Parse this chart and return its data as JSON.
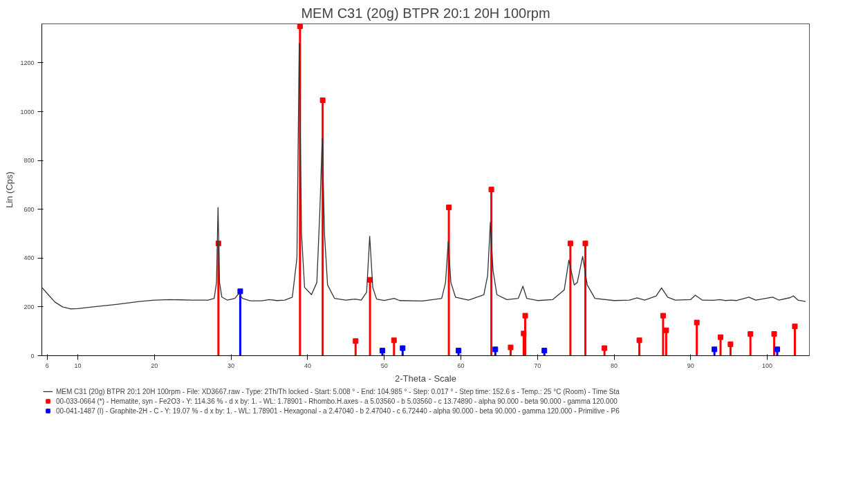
{
  "chart_data": {
    "type": "line",
    "title": "MEM C31 (20g) BTPR 20:1 20H 100rpm",
    "xlabel": "2-Theta - Scale",
    "ylabel": "Lin (Cps)",
    "xlim": [
      5.3,
      105.5
    ],
    "ylim": [
      0,
      1360
    ],
    "xticks": [
      6,
      10,
      20,
      30,
      40,
      50,
      60,
      70,
      80,
      90,
      100
    ],
    "yticks": [
      0,
      200,
      400,
      600,
      800,
      1000,
      1200
    ],
    "grid": false,
    "legend": "bottom",
    "series": [
      {
        "name": "MEM C31 (20g) BTPR 20:1 20H 100rpm - File: XD3667.raw - Type: 2Th/Th locked - Start: 5.008 ° - End: 104.985 ° - Step: 0.017 ° - Step time: 152.6 s - Temp.: 25 °C (Room) - Time Sta",
        "color": "#333333",
        "marker": "none",
        "x": [
          5.3,
          6,
          7,
          8,
          9,
          10,
          12,
          15,
          18,
          20,
          22,
          25,
          27,
          27.8,
          28.1,
          28.3,
          28.5,
          28.8,
          29.5,
          30.5,
          31.0,
          31.5,
          32.5,
          34,
          35,
          36,
          37,
          38,
          38.6,
          38.9,
          39.2,
          39.6,
          40.5,
          41.2,
          41.6,
          41.9,
          42.2,
          42.6,
          43.5,
          45,
          46.2,
          47,
          47.7,
          48.1,
          48.5,
          49,
          50,
          51.3,
          52,
          55,
          57.5,
          58,
          58.35,
          58.7,
          59.3,
          61,
          63,
          63.5,
          63.85,
          64.2,
          64.7,
          66,
          67.5,
          68.1,
          68.6,
          70,
          72,
          73.5,
          74.1,
          74.8,
          75.2,
          75.9,
          76.5,
          77.5,
          80,
          82,
          83,
          84,
          85.5,
          86.2,
          87,
          88,
          90,
          90.6,
          91.5,
          93,
          93.8,
          94.5,
          95.3,
          96,
          97.6,
          98.5,
          100.7,
          101.5,
          103,
          103.4,
          104,
          105
        ],
        "values": [
          280,
          255,
          220,
          200,
          192,
          193,
          200,
          210,
          222,
          228,
          230,
          228,
          228,
          235,
          300,
          607,
          300,
          240,
          228,
          235,
          255,
          235,
          225,
          225,
          230,
          226,
          228,
          240,
          400,
          1280,
          500,
          280,
          250,
          300,
          600,
          890,
          500,
          290,
          235,
          228,
          232,
          228,
          260,
          490,
          280,
          232,
          226,
          235,
          226,
          224,
          235,
          300,
          468,
          300,
          240,
          228,
          250,
          330,
          548,
          350,
          250,
          230,
          235,
          285,
          235,
          226,
          230,
          270,
          392,
          290,
          300,
          407,
          290,
          235,
          226,
          228,
          237,
          228,
          245,
          278,
          240,
          228,
          230,
          248,
          228,
          227,
          230,
          226,
          228,
          226,
          240,
          228,
          240,
          228,
          238,
          245,
          228,
          222
        ]
      },
      {
        "name": "00-033-0664 (*) - Hematite, syn - Fe2O3 - Y: 114.36 % - d x by: 1. - WL: 1.78901 - Rhombo.H.axes - a 5.03560 - b 5.03560 - c 13.74890 - alpha 90.000 - beta 90.000 - gamma 120.000",
        "type": "lollipop",
        "color": "#ff0000",
        "marker": "square",
        "x": [
          28.35,
          39.0,
          41.96,
          46.26,
          48.14,
          51.27,
          58.43,
          63.98,
          66.5,
          68.2,
          68.4,
          74.3,
          76.25,
          78.75,
          83.3,
          86.4,
          86.8,
          90.8,
          93.9,
          95.2,
          97.8,
          100.9,
          103.6
        ],
        "values": [
          460,
          1350,
          1047,
          60,
          311,
          63,
          608,
          681,
          34,
          91,
          164,
          460,
          460,
          31,
          63,
          164,
          104,
          136,
          76,
          47,
          89,
          89,
          120
        ]
      },
      {
        "name": "00-041-1487 (I) - Graphite-2H - C - Y: 19.07 % - d x by: 1. - WL: 1.78901 - Hexagonal - a 2.47040 - b 2.47040 - c 6.72440 - alpha 90.000 - beta 90.000 - gamma 120.000 - Primitive - P6",
        "type": "lollipop",
        "color": "#0000ff",
        "marker": "square",
        "x": [
          31.2,
          49.75,
          52.4,
          59.7,
          64.5,
          70.9,
          93.1,
          101.3
        ],
        "values": [
          264,
          21,
          31,
          21,
          26,
          21,
          26,
          26
        ]
      }
    ]
  }
}
